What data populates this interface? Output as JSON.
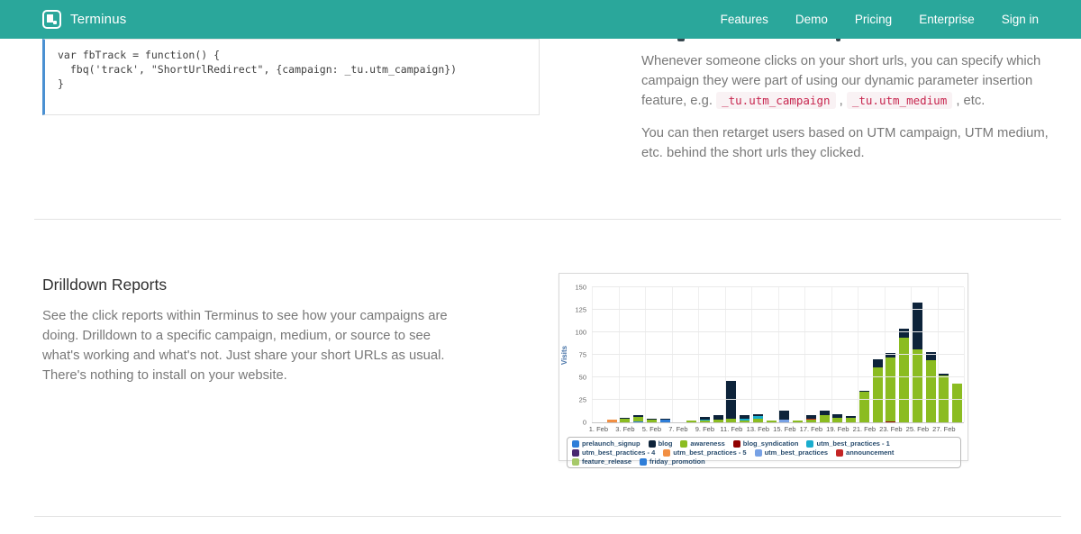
{
  "header": {
    "brand": "Terminus",
    "nav": [
      "Features",
      "Demo",
      "Pricing",
      "Enterprise",
      "Sign in"
    ]
  },
  "code_sample": {
    "lines": "var fbTrack = function() {\n  fbq('track', \"ShortUrlRedirect\", {campaign: _tu.utm_campaign})\n}"
  },
  "retarget_section": {
    "p1_text": "Whenever someone clicks on your short urls, you can specify which campaign they were part of using our dynamic parameter insertion feature, e.g. ",
    "p1_code1": "_tu.utm_campaign",
    "p1_sep": " , ",
    "p1_code2": "_tu.utm_medium",
    "p1_end": " , etc.",
    "p2": "You can then retarget users based on UTM campaign, UTM medium, etc. behind the short urls they clicked."
  },
  "drilldown_section": {
    "title": "Drilldown Reports",
    "body": "See the click reports within Terminus to see how your campaigns are doing. Drilldown to a specific campaign, medium, or source to see what's working and what's not. Just share your short URLs as usual. There's nothing to install on your website."
  },
  "chart_data": {
    "type": "bar",
    "stacked": true,
    "title": "",
    "xlabel": "",
    "ylabel": "Visits",
    "ylim": [
      0,
      150
    ],
    "ytick_step": 25,
    "grid": true,
    "legend_position": "bottom",
    "categories": [
      "1. Feb",
      "2. Feb",
      "3. Feb",
      "4. Feb",
      "5. Feb",
      "6. Feb",
      "7. Feb",
      "8. Feb",
      "9. Feb",
      "10. Feb",
      "11. Feb",
      "12. Feb",
      "13. Feb",
      "14. Feb",
      "15. Feb",
      "16. Feb",
      "17. Feb",
      "18. Feb",
      "19. Feb",
      "20. Feb",
      "21. Feb",
      "22. Feb",
      "23. Feb",
      "24. Feb",
      "25. Feb",
      "26. Feb",
      "27. Feb",
      "28. Feb"
    ],
    "x_label_every": 2,
    "series": [
      {
        "name": "prelaunch_signup",
        "color": "#2f7ed8",
        "values": [
          0,
          0,
          0,
          1,
          0,
          0,
          0,
          0,
          0,
          0,
          0,
          0,
          0,
          0,
          0,
          0,
          0,
          0,
          0,
          0,
          0,
          0,
          0,
          0,
          0,
          0,
          0,
          0
        ]
      },
      {
        "name": "blog",
        "color": "#0d233a",
        "values": [
          0,
          0,
          1,
          2,
          1,
          1,
          0,
          0,
          3,
          5,
          42,
          4,
          2,
          0,
          10,
          0,
          4,
          5,
          4,
          2,
          1,
          9,
          5,
          10,
          52,
          9,
          2,
          0
        ]
      },
      {
        "name": "awareness",
        "color": "#8bbc21",
        "values": [
          0,
          0,
          4,
          5,
          3,
          0,
          0,
          2,
          2,
          3,
          4,
          2,
          4,
          2,
          0,
          2,
          3,
          8,
          5,
          5,
          34,
          61,
          71,
          94,
          81,
          69,
          52,
          43
        ]
      },
      {
        "name": "blog_syndication",
        "color": "#910000",
        "values": [
          0,
          0,
          0,
          0,
          0,
          0,
          0,
          0,
          0,
          0,
          0,
          0,
          0,
          0,
          0,
          0,
          0,
          0,
          0,
          0,
          0,
          0,
          1,
          0,
          0,
          0,
          0,
          0
        ]
      },
      {
        "name": "utm_best_practices - 1",
        "color": "#1aadce",
        "values": [
          0,
          0,
          0,
          0,
          0,
          0,
          0,
          0,
          1,
          0,
          0,
          2,
          3,
          0,
          0,
          0,
          0,
          0,
          0,
          0,
          0,
          0,
          0,
          0,
          0,
          0,
          0,
          0
        ]
      },
      {
        "name": "utm_best_practices - 4",
        "color": "#492970",
        "values": [
          0,
          0,
          0,
          0,
          0,
          0,
          0,
          0,
          0,
          0,
          0,
          0,
          0,
          0,
          0,
          0,
          0,
          0,
          0,
          0,
          0,
          0,
          0,
          0,
          0,
          0,
          0,
          0
        ]
      },
      {
        "name": "utm_best_practices - 5",
        "color": "#f28f43",
        "values": [
          0,
          3,
          0,
          0,
          0,
          0,
          0,
          0,
          0,
          0,
          0,
          0,
          0,
          0,
          0,
          0,
          0,
          0,
          0,
          0,
          0,
          0,
          0,
          0,
          0,
          0,
          0,
          0
        ]
      },
      {
        "name": "utm_best_practices",
        "color": "#77a1e5",
        "values": [
          0,
          0,
          0,
          0,
          0,
          0,
          0,
          0,
          0,
          0,
          0,
          0,
          0,
          0,
          3,
          0,
          0,
          0,
          0,
          0,
          0,
          0,
          0,
          0,
          0,
          0,
          0,
          0
        ]
      },
      {
        "name": "announcement",
        "color": "#c42525",
        "values": [
          0,
          0,
          0,
          0,
          0,
          0,
          0,
          0,
          0,
          0,
          0,
          0,
          0,
          0,
          0,
          0,
          1,
          0,
          0,
          0,
          0,
          0,
          0,
          0,
          0,
          0,
          0,
          0
        ]
      },
      {
        "name": "feature_release",
        "color": "#a6c96a",
        "values": [
          0,
          0,
          0,
          0,
          0,
          0,
          0,
          0,
          0,
          0,
          0,
          0,
          0,
          0,
          0,
          0,
          0,
          0,
          0,
          0,
          0,
          0,
          0,
          0,
          0,
          0,
          0,
          0
        ]
      },
      {
        "name": "friday_promotion",
        "color": "#2f7ed8",
        "values": [
          0,
          0,
          0,
          0,
          0,
          3,
          0,
          0,
          0,
          0,
          0,
          0,
          0,
          0,
          0,
          0,
          0,
          0,
          0,
          0,
          0,
          0,
          0,
          0,
          0,
          0,
          0,
          0
        ]
      }
    ],
    "stack_order": [
      "prelaunch_signup",
      "utm_best_practices - 5",
      "friday_promotion",
      "blog_syndication",
      "utm_best_practices",
      "awareness",
      "announcement",
      "utm_best_practices - 1",
      "feature_release",
      "blog",
      "utm_best_practices - 4"
    ]
  }
}
